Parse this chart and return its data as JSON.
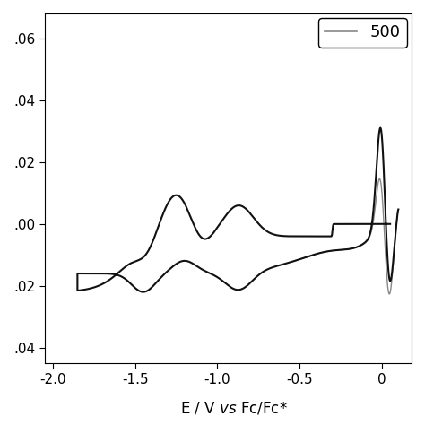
{
  "xlim": [
    -2.05,
    0.18
  ],
  "ylim": [
    -0.045,
    0.068
  ],
  "yticks": [
    -0.04,
    -0.02,
    0.0,
    0.02,
    0.04,
    0.06
  ],
  "xticks": [
    -2.0,
    -1.5,
    -1.0,
    -0.5,
    0.0
  ],
  "ytick_labels": [
    ".04",
    ".02",
    ".00",
    ".02",
    ".04",
    ".06"
  ],
  "xtick_labels": [
    "-2.0",
    "-1.5",
    "-1.0",
    "-0.5",
    "0"
  ],
  "legend_label": "500",
  "line_color_black": "#111111",
  "line_color_gray": "#888888",
  "background": "#ffffff",
  "tick_fontsize": 11,
  "label_fontsize": 12,
  "legend_fontsize": 13
}
